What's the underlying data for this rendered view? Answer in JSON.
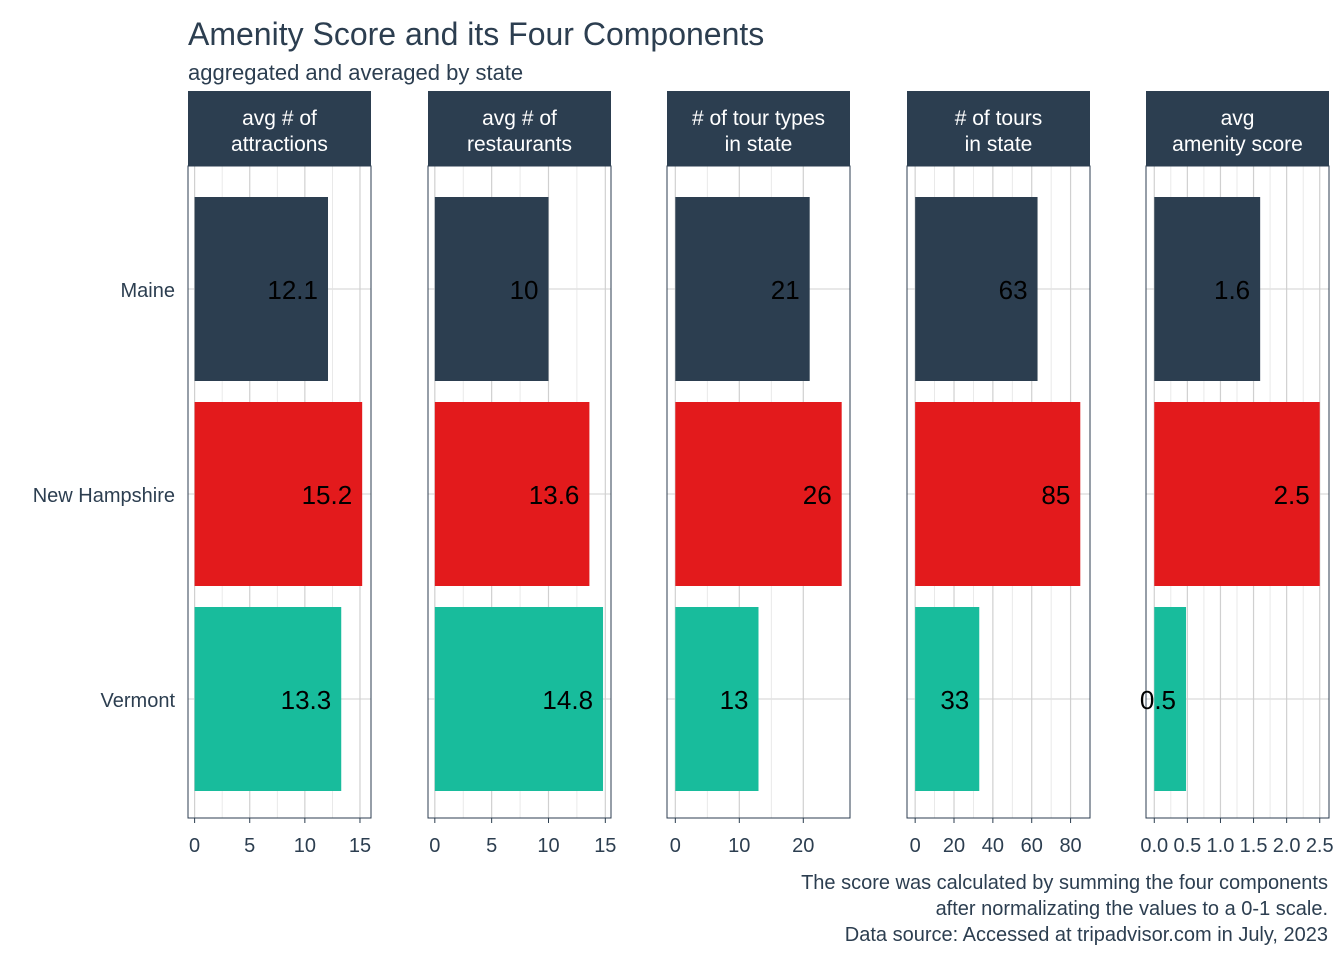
{
  "chart_data": {
    "type": "bar",
    "orientation": "horizontal",
    "title": "Amenity Score and its Four Components",
    "subtitle": "aggregated and averaged by state",
    "categories": [
      "Maine",
      "New Hampshire",
      "Vermont"
    ],
    "category_colors": [
      "#2c3e50",
      "#e31a1c",
      "#18bc9c"
    ],
    "grid": true,
    "legend": "none",
    "facets": [
      {
        "label_lines": [
          "avg # of",
          "attractions"
        ],
        "values": [
          12.1,
          15.2,
          13.3
        ],
        "value_labels": [
          "12.1",
          "15.2",
          "13.3"
        ],
        "xlim": [
          -0.6,
          16
        ],
        "ticks": [
          0,
          5,
          10,
          15
        ],
        "tick_labels": [
          "0",
          "5",
          "10",
          "15"
        ]
      },
      {
        "label_lines": [
          "avg # of",
          "restaurants"
        ],
        "values": [
          10,
          13.6,
          14.8
        ],
        "value_labels": [
          "10",
          "13.6",
          "14.8"
        ],
        "xlim": [
          -0.6,
          15.5
        ],
        "ticks": [
          0,
          5,
          10,
          15
        ],
        "tick_labels": [
          "0",
          "5",
          "10",
          "15"
        ]
      },
      {
        "label_lines": [
          "# of tour types",
          "in state"
        ],
        "values": [
          21,
          26,
          13
        ],
        "value_labels": [
          "21",
          "26",
          "13"
        ],
        "xlim": [
          -1.3,
          27.3
        ],
        "ticks": [
          0,
          10,
          20
        ],
        "tick_labels": [
          "0",
          "10",
          "20"
        ]
      },
      {
        "label_lines": [
          "# of tours",
          "in state"
        ],
        "values": [
          63,
          85,
          33
        ],
        "value_labels": [
          "63",
          "85",
          "33"
        ],
        "xlim": [
          -4.2,
          90
        ],
        "ticks": [
          0,
          20,
          40,
          60,
          80
        ],
        "tick_labels": [
          "0",
          "20",
          "40",
          "60",
          "80"
        ]
      },
      {
        "label_lines": [
          "avg",
          "amenity score"
        ],
        "values": [
          1.6,
          2.5,
          0.48
        ],
        "value_labels": [
          "1.6",
          "2.5",
          "0.5"
        ],
        "xlim": [
          -0.125,
          2.64
        ],
        "ticks": [
          0,
          0.5,
          1,
          1.5,
          2,
          2.5
        ],
        "tick_labels": [
          "0.0",
          "0.5",
          "1.0",
          "1.5",
          "2.0",
          "2.5"
        ]
      }
    ],
    "caption_lines": [
      "The score was calculated by summing the four components",
      "after normalizating the values to a 0-1 scale.",
      "Data source: Accessed at tripadvisor.com in July, 2023"
    ]
  }
}
